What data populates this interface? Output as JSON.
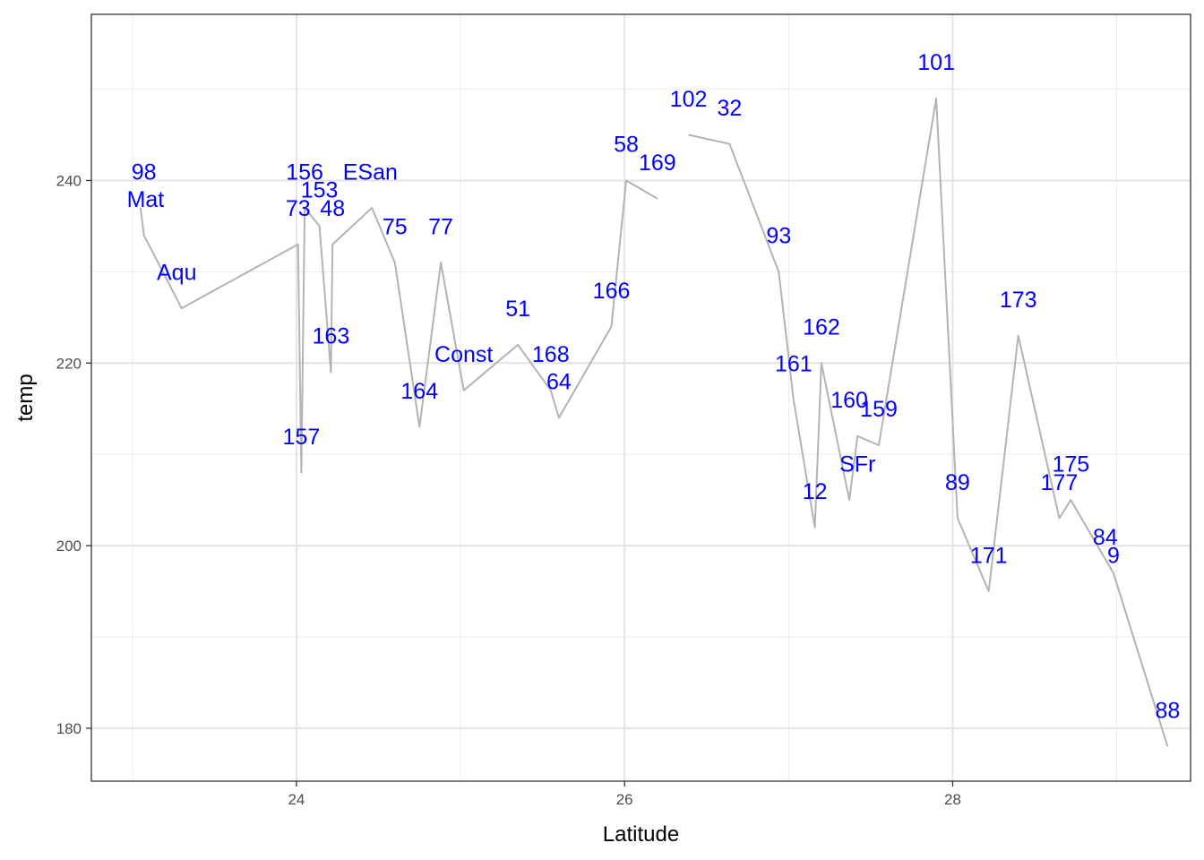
{
  "chart_data": {
    "type": "line",
    "title": "",
    "xlabel": "Latitude",
    "ylabel": "temp",
    "xlim": [
      22.75,
      29.45
    ],
    "ylim": [
      174.2,
      258.2
    ],
    "x_ticks": [
      24,
      26,
      28
    ],
    "x_minor_ticks": [
      23,
      25,
      27,
      29
    ],
    "y_ticks": [
      180,
      200,
      220,
      240
    ],
    "y_minor_ticks": [
      190,
      210,
      230,
      250
    ],
    "grid": true,
    "theme": "bw",
    "line_color": "#b3b3b3",
    "label_color": "#0000ff",
    "series": [
      {
        "segments": [
          [
            [
              23.05,
              237
            ],
            [
              23.07,
              234
            ],
            [
              23.3,
              226
            ],
            [
              24.01,
              233
            ],
            [
              24.03,
              208
            ],
            [
              24.05,
              237
            ],
            [
              24.14,
              235
            ],
            [
              24.21,
              219
            ],
            [
              24.22,
              233
            ],
            [
              24.46,
              237
            ],
            [
              24.6,
              231
            ],
            [
              24.75,
              213
            ],
            [
              24.88,
              231
            ],
            [
              25.02,
              217
            ],
            [
              25.35,
              222
            ],
            [
              25.55,
              217
            ],
            [
              25.6,
              214
            ],
            [
              25.92,
              224
            ],
            [
              26.01,
              240
            ],
            [
              26.2,
              238
            ]
          ],
          [
            [
              26.39,
              245
            ],
            [
              26.64,
              244
            ],
            [
              26.94,
              230
            ],
            [
              27.03,
              216
            ],
            [
              27.16,
              202
            ],
            [
              27.2,
              220
            ],
            [
              27.37,
              205
            ],
            [
              27.42,
              212
            ],
            [
              27.55,
              211
            ],
            [
              27.9,
              249
            ],
            [
              28.03,
              203
            ],
            [
              28.22,
              195
            ],
            [
              28.4,
              223
            ],
            [
              28.65,
              203
            ],
            [
              28.72,
              205
            ],
            [
              28.98,
              197
            ],
            [
              29.31,
              178
            ]
          ]
        ]
      }
    ],
    "labels": [
      {
        "text": "98",
        "x": 23.07,
        "y": 241
      },
      {
        "text": "Mat",
        "x": 23.08,
        "y": 238
      },
      {
        "text": "Aqu",
        "x": 23.27,
        "y": 230
      },
      {
        "text": "156",
        "x": 24.05,
        "y": 241
      },
      {
        "text": "ESan",
        "x": 24.45,
        "y": 241
      },
      {
        "text": "153",
        "x": 24.14,
        "y": 239
      },
      {
        "text": "73",
        "x": 24.01,
        "y": 237
      },
      {
        "text": "48",
        "x": 24.22,
        "y": 237
      },
      {
        "text": "75",
        "x": 24.6,
        "y": 235
      },
      {
        "text": "77",
        "x": 24.88,
        "y": 235
      },
      {
        "text": "163",
        "x": 24.21,
        "y": 223
      },
      {
        "text": "157",
        "x": 24.03,
        "y": 212
      },
      {
        "text": "164",
        "x": 24.75,
        "y": 217
      },
      {
        "text": "Const",
        "x": 25.02,
        "y": 221
      },
      {
        "text": "51",
        "x": 25.35,
        "y": 226
      },
      {
        "text": "168",
        "x": 25.55,
        "y": 221
      },
      {
        "text": "64",
        "x": 25.6,
        "y": 218
      },
      {
        "text": "166",
        "x": 25.92,
        "y": 228
      },
      {
        "text": "58",
        "x": 26.01,
        "y": 244
      },
      {
        "text": "169",
        "x": 26.2,
        "y": 242
      },
      {
        "text": "102",
        "x": 26.39,
        "y": 249
      },
      {
        "text": "32",
        "x": 26.64,
        "y": 248
      },
      {
        "text": "93",
        "x": 26.94,
        "y": 234
      },
      {
        "text": "162",
        "x": 27.2,
        "y": 224
      },
      {
        "text": "161",
        "x": 27.03,
        "y": 220
      },
      {
        "text": "160",
        "x": 27.37,
        "y": 216
      },
      {
        "text": "159",
        "x": 27.55,
        "y": 215
      },
      {
        "text": "SFr",
        "x": 27.42,
        "y": 209
      },
      {
        "text": "12",
        "x": 27.16,
        "y": 206
      },
      {
        "text": "101",
        "x": 27.9,
        "y": 253
      },
      {
        "text": "89",
        "x": 28.03,
        "y": 207
      },
      {
        "text": "171",
        "x": 28.22,
        "y": 199
      },
      {
        "text": "173",
        "x": 28.4,
        "y": 227
      },
      {
        "text": "175",
        "x": 28.72,
        "y": 209
      },
      {
        "text": "177",
        "x": 28.65,
        "y": 207
      },
      {
        "text": "84",
        "x": 28.93,
        "y": 201
      },
      {
        "text": "9",
        "x": 28.98,
        "y": 199
      },
      {
        "text": "88",
        "x": 29.31,
        "y": 182
      }
    ]
  }
}
